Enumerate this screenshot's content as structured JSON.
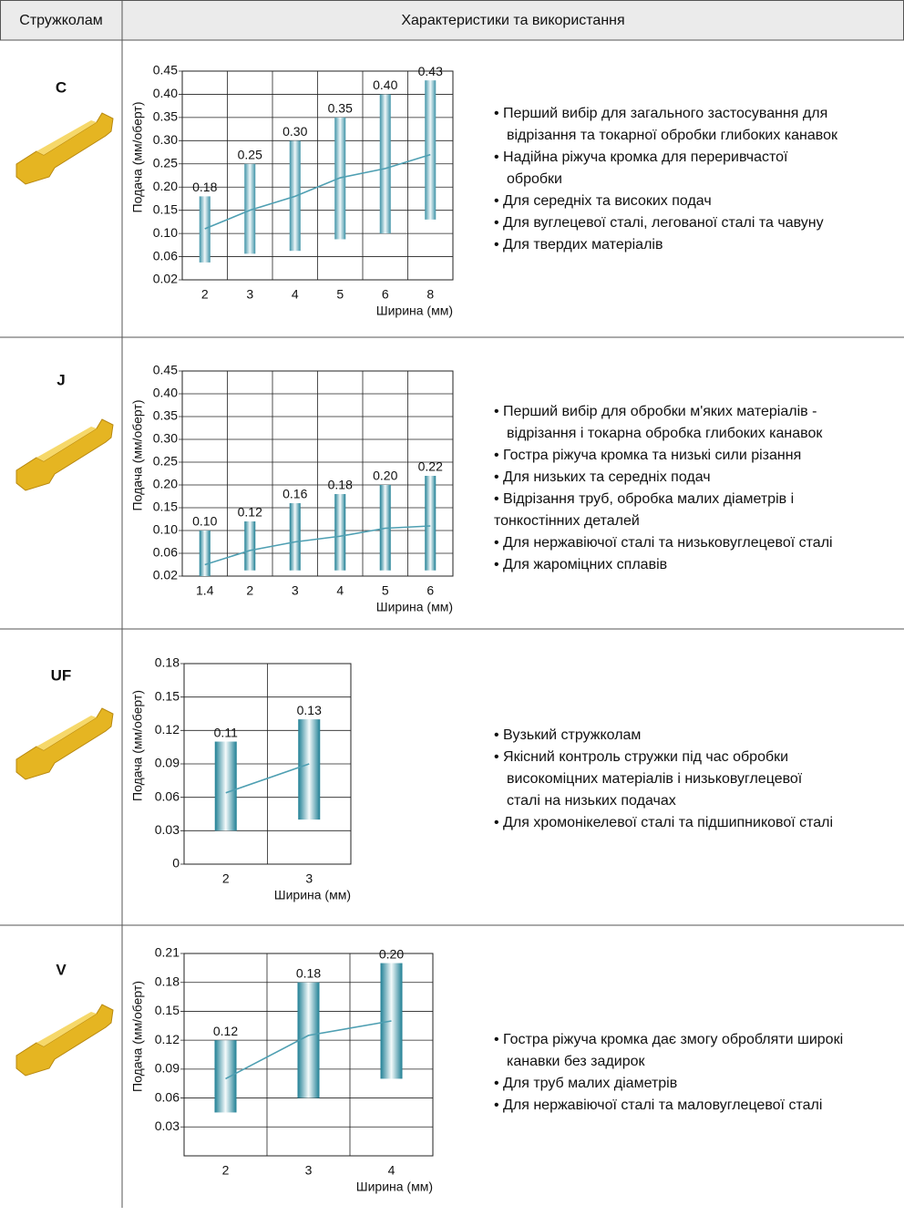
{
  "header": {
    "col1": "Стружколам",
    "col2": "Характеристики та використання"
  },
  "rows": [
    {
      "code": "C",
      "chart": {
        "type": "range_bar",
        "y_label": "Подача (мм/оберт)",
        "x_label": "Ширина (мм)",
        "categories": [
          "2",
          "3",
          "4",
          "5",
          "6",
          "8"
        ],
        "values": [
          0.18,
          0.25,
          0.3,
          0.35,
          0.4,
          0.43
        ],
        "value_labels": [
          "0.18",
          "0.25",
          "0.30",
          "0.35",
          "0.40",
          "0.43"
        ],
        "lows": [
          0.05,
          0.065,
          0.07,
          0.09,
          0.1,
          0.13
        ],
        "trend": [
          0.11,
          0.15,
          0.18,
          0.22,
          0.24,
          0.27
        ],
        "ylim": [
          0.02,
          0.45
        ],
        "yticks": [
          0.02,
          0.06,
          {
            "value": 0.1,
            "label": "0.10"
          },
          0.15,
          {
            "value": 0.2,
            "label": "0.20"
          },
          0.25,
          {
            "value": 0.3,
            "label": "0.30"
          },
          0.35,
          {
            "value": 0.4,
            "label": "0.40"
          },
          0.45
        ],
        "grid": true,
        "color": "#3f93a7",
        "line_color": "#4e9fb2"
      },
      "items": [
        [
          "• Перший вибір для загального застосування для",
          "відрізання та токарної обробки глибоких канавок"
        ],
        [
          "• Надійна ріжуча кромка для переривчастої",
          "обробки"
        ],
        [
          "• Для середніх та високих подач"
        ],
        [
          "• Для вуглецевої сталі, легованої сталі та чавуну"
        ],
        [
          "• Для твердих матеріалів"
        ]
      ]
    },
    {
      "code": "J",
      "chart": {
        "type": "range_bar",
        "y_label": "Подача (мм/оберт)",
        "x_label": "Ширина (мм)",
        "categories": [
          "1.4",
          "2",
          "3",
          "4",
          "5",
          "6"
        ],
        "values": [
          0.1,
          0.12,
          0.16,
          0.18,
          0.2,
          0.22
        ],
        "value_labels": [
          "0.10",
          "0.12",
          "0.16",
          "0.18",
          "0.20",
          "0.22"
        ],
        "lows": [
          0.02,
          0.03,
          0.03,
          0.03,
          0.03,
          0.03
        ],
        "trend": [
          0.04,
          0.065,
          0.08,
          0.09,
          0.105,
          0.11
        ],
        "ylim": [
          0.02,
          0.45
        ],
        "yticks": [
          0.02,
          0.06,
          {
            "value": 0.1,
            "label": "0.10"
          },
          0.15,
          {
            "value": 0.2,
            "label": "0.20"
          },
          0.25,
          {
            "value": 0.3,
            "label": "0.30"
          },
          0.35,
          {
            "value": 0.4,
            "label": "0.40"
          },
          0.45
        ],
        "grid": true,
        "color": "#1f7f94",
        "line_color": "#4e9fb2"
      },
      "items": [
        [
          "• Перший вибір для обробки м'яких матеріалів -",
          "відрізання і токарна обробка глибоких канавок"
        ],
        [
          "• Гостра ріжуча кромка та низькі сили різання"
        ],
        [
          "• Для низьких та середніх подач"
        ],
        [
          "• Відрізання труб, обробка малих діаметрів і"
        ],
        [
          "тонкостінних деталей"
        ],
        [
          "• Для нержавіючої сталі та низьковуглецевої сталі"
        ],
        [
          "• Для жароміцних сплавів"
        ]
      ]
    },
    {
      "code": "UF",
      "chart": {
        "type": "range_bar",
        "y_label": "Подача (мм/оберт)",
        "x_label": "Ширина (мм)",
        "categories": [
          "2",
          "3"
        ],
        "values": [
          0.11,
          0.13
        ],
        "value_labels": [
          "0.11",
          "0.13"
        ],
        "lows": [
          0.03,
          0.04
        ],
        "trend": [
          0.064,
          0.09
        ],
        "ylim": [
          0,
          0.18
        ],
        "yticks": [
          0,
          0.03,
          0.06,
          0.09,
          0.12,
          0.15,
          0.18
        ],
        "grid": true,
        "color": "#1f7f94",
        "line_color": "#4e9fb2"
      },
      "items": [
        [
          "• Вузький стружколам"
        ],
        [
          "• Якісний контроль стружки під час обробки",
          "високоміцних матеріалів і низьковуглецевої",
          "сталі на низьких подачах"
        ],
        [
          "• Для хромонікелевої сталі та підшипникової сталі"
        ]
      ]
    },
    {
      "code": "V",
      "chart": {
        "type": "range_bar",
        "y_label": "Подача (мм/оберт)",
        "x_label": "Ширина (мм)",
        "categories": [
          "2",
          "3",
          "4"
        ],
        "values": [
          0.12,
          0.18,
          0.2
        ],
        "value_labels": [
          "0.12",
          "0.18",
          "0.20"
        ],
        "lows": [
          0.045,
          0.06,
          0.08
        ],
        "trend": [
          0.08,
          0.125,
          0.14
        ],
        "ylim": [
          0,
          0.21
        ],
        "yticks": [
          0.03,
          0.06,
          0.09,
          0.12,
          0.15,
          0.18,
          0.21
        ],
        "grid": true,
        "color": "#1f7f94",
        "line_color": "#4e9fb2"
      },
      "items": [
        [
          "• Гостра ріжуча кромка дає змогу обробляти широкі",
          "канавки без задирок"
        ],
        [
          "• Для труб малих діаметрів"
        ],
        [
          "• Для нержавіючої сталі та маловуглецевої сталі"
        ]
      ]
    }
  ]
}
